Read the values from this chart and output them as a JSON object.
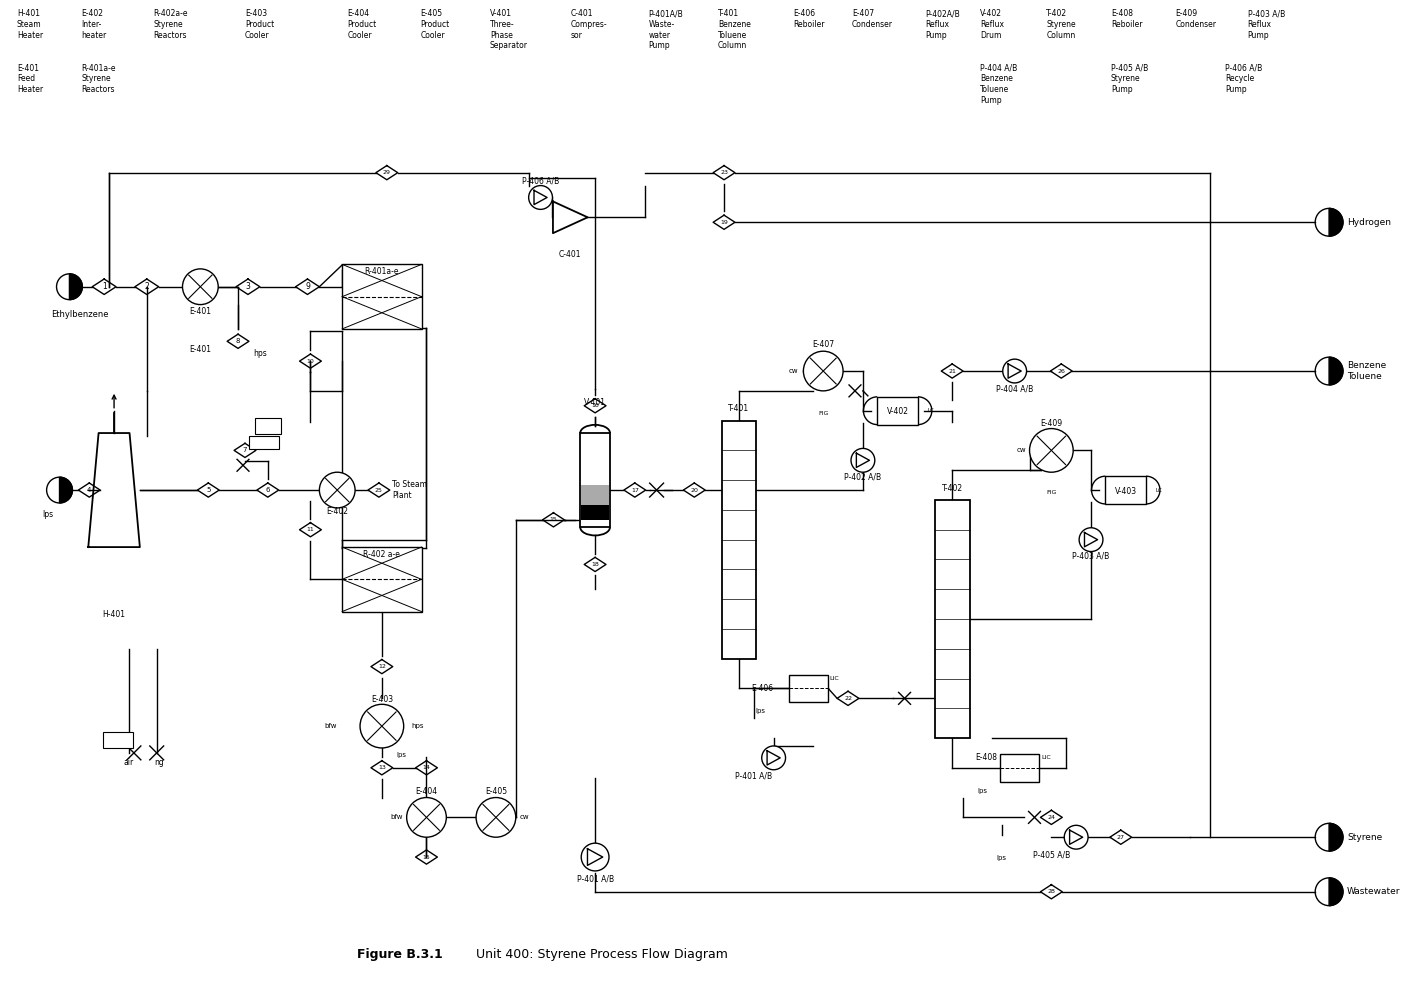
{
  "background_color": "#ffffff",
  "figure_caption_bold": "Figure B.3.1",
  "figure_caption_rest": "   Unit 400: Styrene Process Flow Diagram",
  "header_row1": [
    [
      "H-401\nSteam\nHeater",
      0.012
    ],
    [
      "E-402\nInter-\nheater",
      0.058
    ],
    [
      "R-402a-e\nStyrene\nReactors",
      0.11
    ],
    [
      "E-403\nProduct\nCooler",
      0.175
    ],
    [
      "E-404\nProduct\nCooler",
      0.228
    ],
    [
      "E-405\nProduct\nCooler",
      0.278
    ],
    [
      "V-401\nThree-\nPhase\nSeparator",
      0.328
    ],
    [
      "C-401\nCompres-\nsor",
      0.383
    ],
    [
      "P-401A/B\nWaste-\nwater\nPump",
      0.43
    ],
    [
      "T-401\nBenzene\nToluene\nColumn",
      0.478
    ],
    [
      "E-406\nReboiler",
      0.53
    ],
    [
      "E-407\nCondenser",
      0.578
    ],
    [
      "P-402A/B\nReflux\nPump",
      0.627
    ],
    [
      "V-402\nReflux\nDrum",
      0.672
    ],
    [
      "T-402\nStyrene\nColumn",
      0.718
    ],
    [
      "E-408\nReboiler",
      0.765
    ],
    [
      "E-409\nCondenser",
      0.81
    ],
    [
      "P-403 A/B\nReflux\nPump",
      0.858
    ]
  ],
  "header_row2": [
    [
      "E-401\nFeed\nHeater",
      0.012
    ],
    [
      "R-401a-e\nStyrene\nReactors",
      0.058
    ],
    [
      "P-404 A/B\nBenzene\nToluene\nPump",
      0.627
    ],
    [
      "P-405 A/B\nStyrene\nPump",
      0.765
    ],
    [
      "P-406 A/B\nRecycle\nPump",
      0.858
    ]
  ]
}
